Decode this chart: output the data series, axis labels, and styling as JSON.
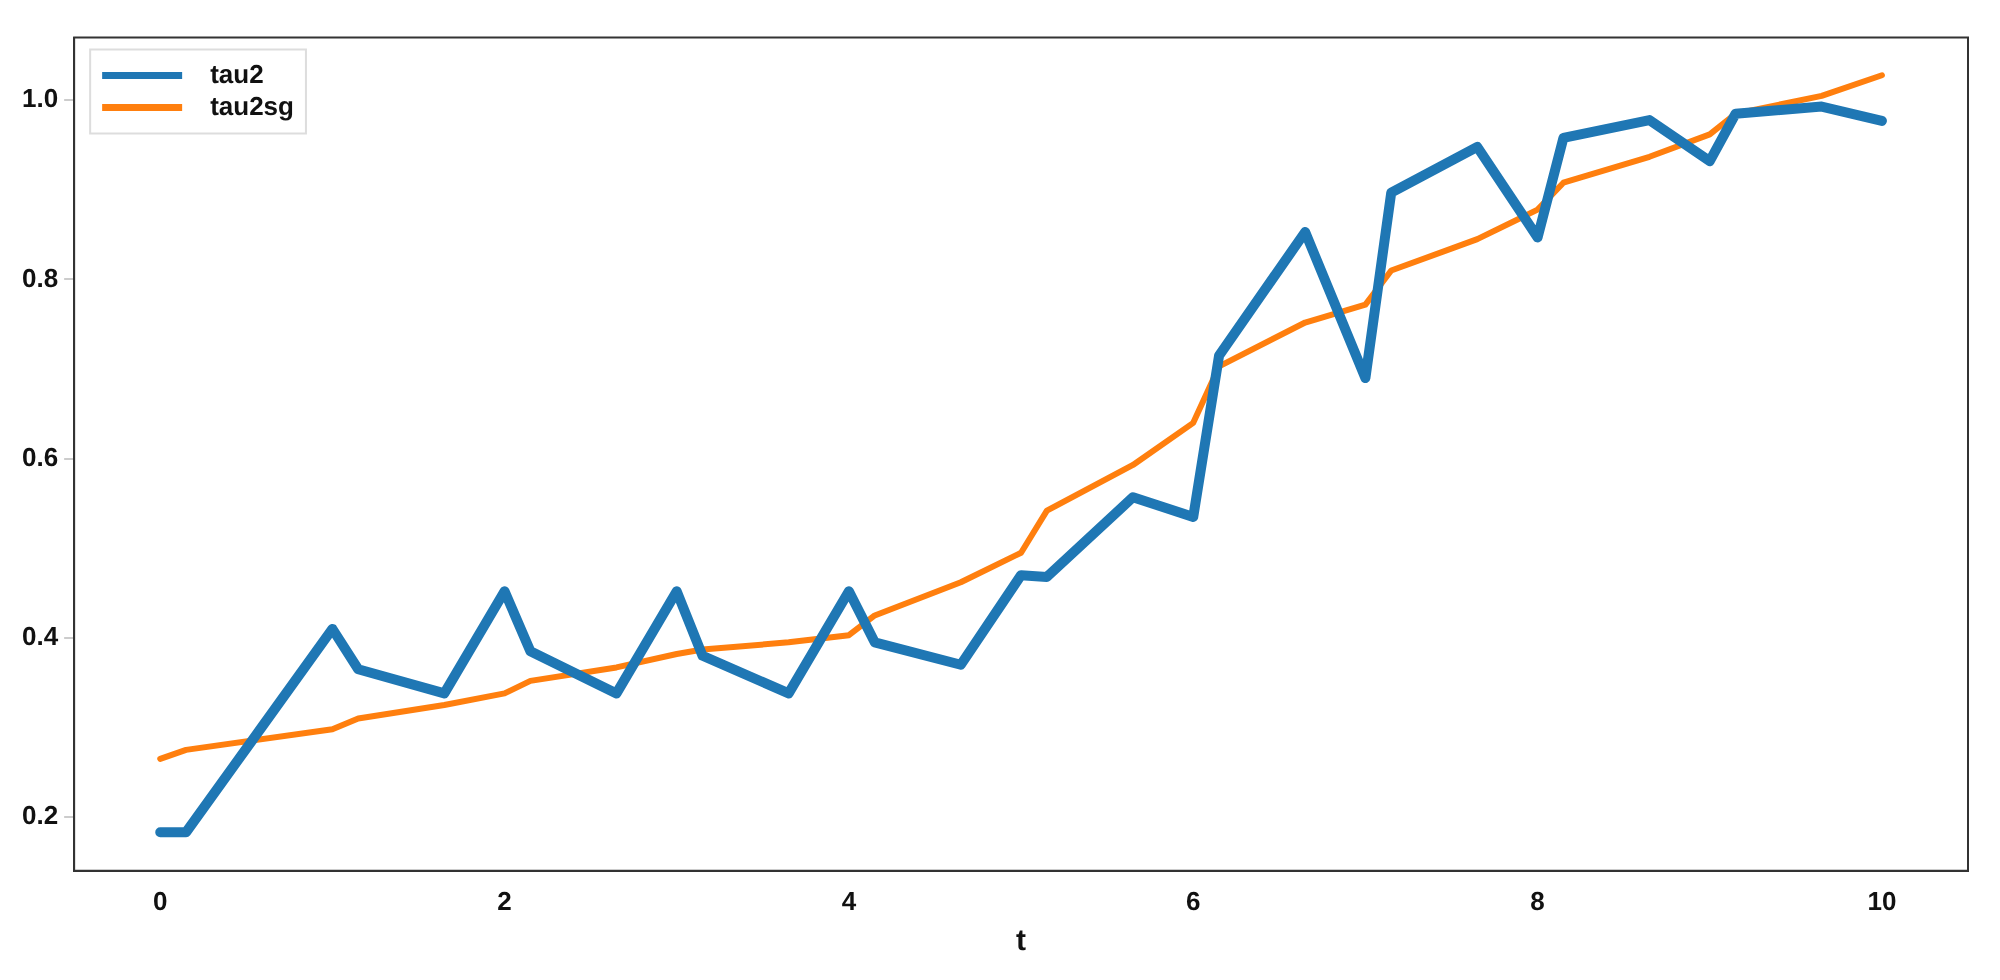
{
  "chart_data": {
    "type": "line",
    "xlabel": "t",
    "xlim": [
      -0.5,
      10.5
    ],
    "xticks": [
      0,
      2,
      4,
      6,
      8,
      10
    ],
    "ylim": [
      0.14,
      1.07
    ],
    "yticks": [
      0.2,
      0.4,
      0.6,
      0.8,
      {
        "value": 1,
        "label": "1.0"
      }
    ],
    "grid": false,
    "legend": "top left",
    "marker": "none",
    "line_style": "solid",
    "x": [
      0,
      0.15,
      1,
      1.15,
      1.65,
      2,
      2.15,
      2.65,
      3,
      3.15,
      3.65,
      4,
      4.15,
      4.65,
      5,
      5.15,
      5.65,
      6,
      6.15,
      6.65,
      7,
      7.15,
      7.65,
      8,
      8.15,
      8.65,
      9,
      9.15,
      9.65,
      10
    ],
    "series": [
      {
        "name": "tau2",
        "color": "#1f77b4",
        "values": [
          0.183,
          0.183,
          0.41,
          0.365,
          0.338,
          0.452,
          0.385,
          0.338,
          0.452,
          0.38,
          0.338,
          0.452,
          0.395,
          0.37,
          0.47,
          0.468,
          0.557,
          0.535,
          0.715,
          0.853,
          0.69,
          0.897,
          0.948,
          0.847,
          0.958,
          0.978,
          0.932,
          0.985,
          0.993,
          0.977
        ]
      },
      {
        "name": "tau2sg",
        "color": "#ff7f0e",
        "values": [
          0.265,
          0.275,
          0.298,
          0.31,
          0.325,
          0.338,
          0.352,
          0.367,
          0.382,
          0.387,
          0.395,
          0.403,
          0.425,
          0.462,
          0.495,
          0.542,
          0.593,
          0.64,
          0.703,
          0.752,
          0.772,
          0.81,
          0.845,
          0.878,
          0.908,
          0.937,
          0.962,
          0.985,
          1.005,
          1.028
        ]
      }
    ]
  }
}
